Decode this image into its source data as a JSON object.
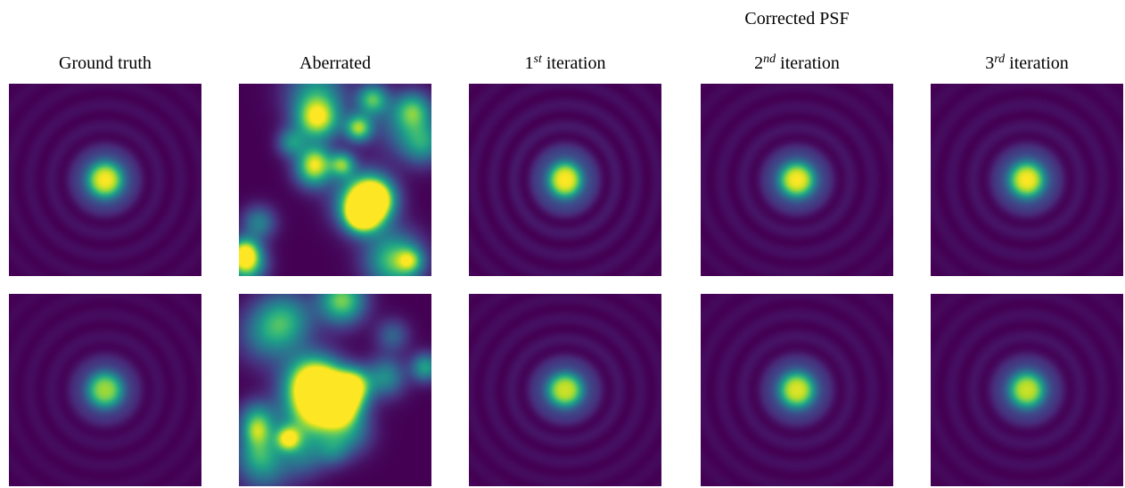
{
  "figure": {
    "group_title": "Corrected PSF",
    "columns": [
      {
        "title": "Ground truth",
        "ordinal": "",
        "suffix": ""
      },
      {
        "title": "Aberrated",
        "ordinal": "",
        "suffix": ""
      },
      {
        "title": "1",
        "ordinal": "st",
        "suffix": " iteration"
      },
      {
        "title": "2",
        "ordinal": "nd",
        "suffix": " iteration"
      },
      {
        "title": "3",
        "ordinal": "rd",
        "suffix": " iteration"
      }
    ],
    "colormap": "viridis",
    "colormap_stops": [
      "#440154",
      "#482878",
      "#3e4989",
      "#31688e",
      "#26828e",
      "#1f9e89",
      "#35b779",
      "#6ece58",
      "#b5de2b",
      "#fde725"
    ]
  }
}
